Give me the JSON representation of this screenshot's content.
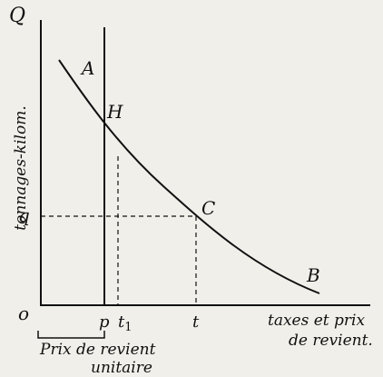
{
  "axis": {
    "y_label": "tonnages-kilom.",
    "y_end": "Q",
    "origin": "o",
    "x_label_line1": "taxes et prix",
    "x_label_line2": "de revient."
  },
  "points": {
    "a": "A",
    "h": "H",
    "c": "C",
    "b": "B",
    "q": "q",
    "p": "p",
    "t1": "t",
    "t1_sub": "1",
    "t": "t"
  },
  "bracket": {
    "line1": "Prix de revient",
    "line2": "unitaire"
  }
}
